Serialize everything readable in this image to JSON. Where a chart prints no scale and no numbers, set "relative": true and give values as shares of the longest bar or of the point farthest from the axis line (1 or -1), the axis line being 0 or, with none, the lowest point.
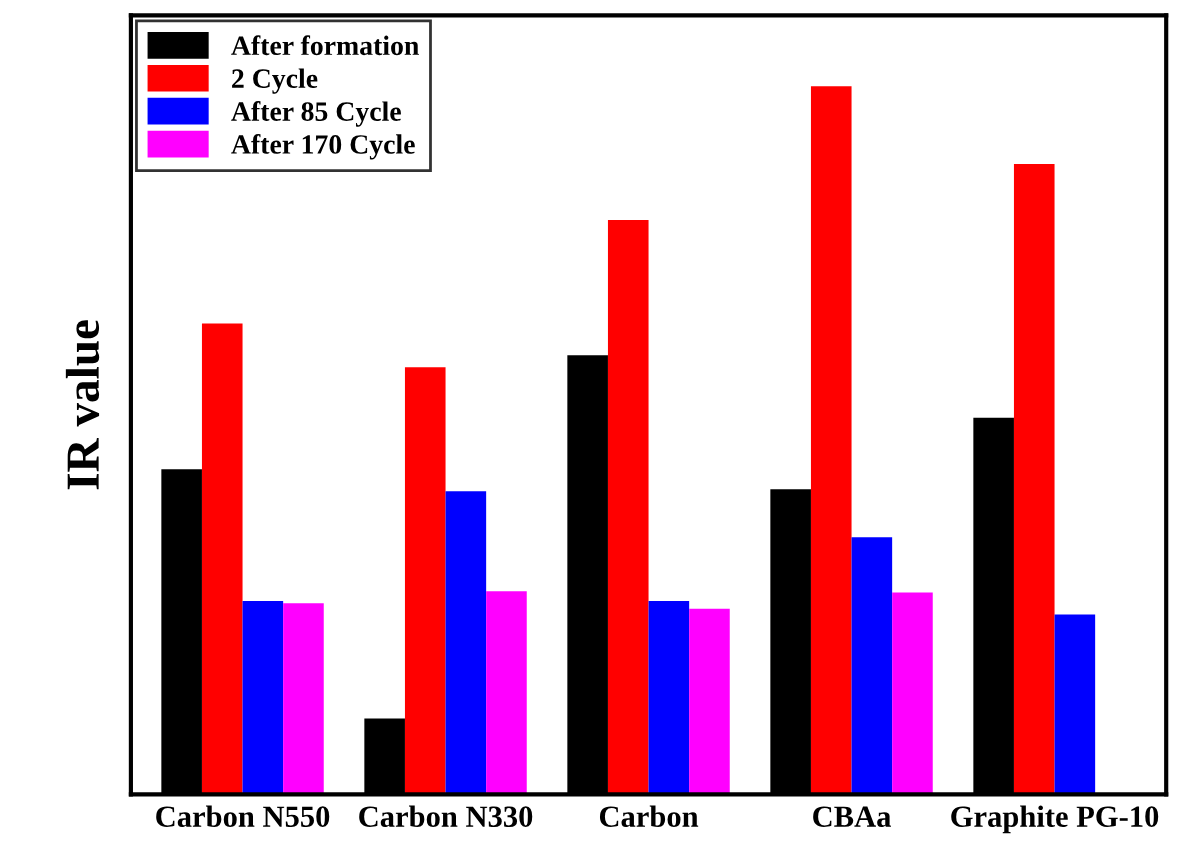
{
  "chart_data": {
    "type": "bar",
    "relative": true,
    "ylabel": "IR value",
    "categories": [
      "Carbon N550",
      "Carbon N330",
      "Carbon",
      "CBAa",
      "Graphite PG-10"
    ],
    "series": [
      {
        "name": "After formation",
        "color": "#000000",
        "values": [
          0.459,
          0.107,
          0.62,
          0.431,
          0.532
        ]
      },
      {
        "name": "2 Cycle",
        "color": "#ff0000",
        "values": [
          0.665,
          0.603,
          0.811,
          1,
          0.89
        ]
      },
      {
        "name": "After 85 Cycle",
        "color": "#0000ff",
        "values": [
          0.273,
          0.428,
          0.273,
          0.363,
          0.254
        ]
      },
      {
        "name": "After 170 Cycle",
        "color": "#ff00ff",
        "values": [
          0.27,
          0.287,
          0.262,
          0.285,
          null
        ]
      }
    ],
    "legend": "top left",
    "grid": false,
    "tick_labels": "x"
  }
}
